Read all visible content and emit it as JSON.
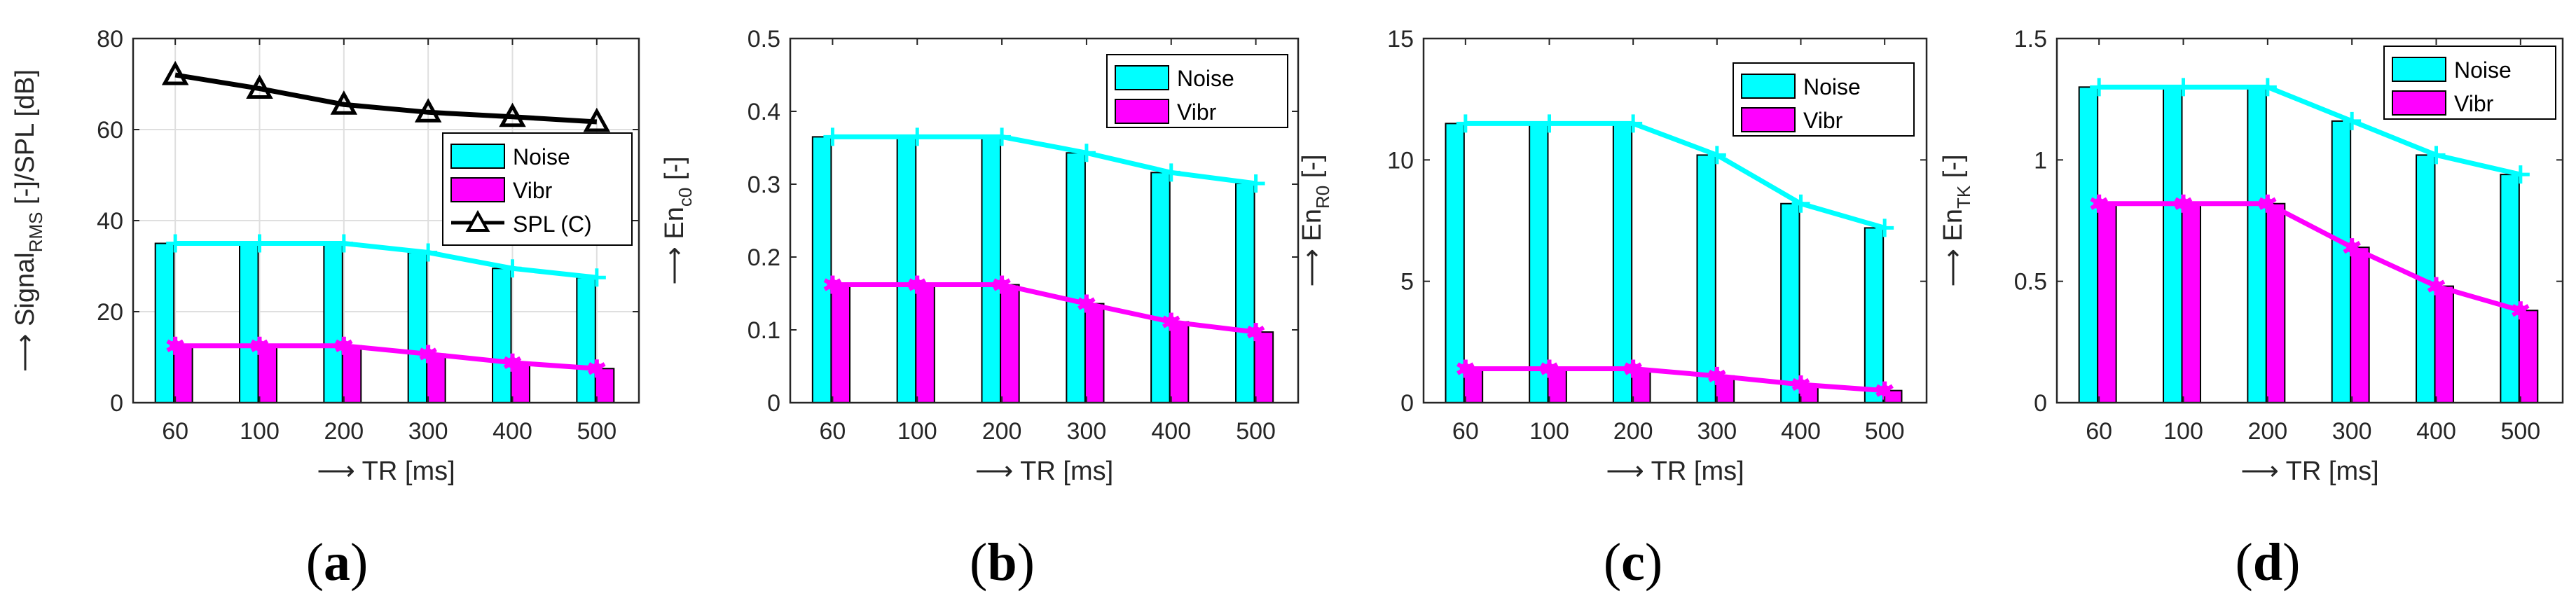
{
  "colors": {
    "noise": "#00FFFF",
    "vibr": "#FF00FF",
    "spl": "#000000",
    "grid": "#DFDFDF",
    "axis": "#262626"
  },
  "chart_data": [
    {
      "panel": "(a)",
      "panel_letter": "a",
      "type": "bar",
      "categories": [
        "60",
        "100",
        "200",
        "300",
        "400",
        "500"
      ],
      "xlabel": "⟶ TR [ms]",
      "ylabel_parts": [
        "⟶ Signal",
        "RMS",
        " [-]/SPL [dB]"
      ],
      "ylim": [
        0,
        80
      ],
      "yticks": [
        "0",
        "20",
        "40",
        "60",
        "80"
      ],
      "grid": true,
      "legend_position": "middle-right",
      "series": [
        {
          "name": "Noise",
          "kind": "bar+line",
          "marker": "+",
          "values": [
            35,
            35,
            35,
            33,
            29.5,
            27.5
          ]
        },
        {
          "name": "Vibr",
          "kind": "bar+line",
          "marker": "*",
          "values": [
            12.5,
            12.5,
            12.5,
            10.7,
            8.8,
            7.5
          ]
        },
        {
          "name": "SPL (C)",
          "kind": "line",
          "marker": "triangle",
          "values": [
            72,
            69,
            65.5,
            63.8,
            62.8,
            61.7
          ]
        }
      ]
    },
    {
      "panel": "(b)",
      "panel_letter": "b",
      "type": "bar",
      "categories": [
        "60",
        "100",
        "200",
        "300",
        "400",
        "500"
      ],
      "xlabel": "⟶ TR [ms]",
      "ylabel_parts": [
        "⟶ En",
        "c0",
        " [-]"
      ],
      "ylim": [
        0,
        0.5
      ],
      "yticks": [
        "0",
        "0.1",
        "0.2",
        "0.3",
        "0.4",
        "0.5"
      ],
      "grid": false,
      "legend_position": "top-right",
      "series": [
        {
          "name": "Noise",
          "kind": "bar+line",
          "marker": "+",
          "values": [
            0.365,
            0.365,
            0.365,
            0.343,
            0.316,
            0.301
          ]
        },
        {
          "name": "Vibr",
          "kind": "bar+line",
          "marker": "*",
          "values": [
            0.162,
            0.162,
            0.162,
            0.136,
            0.111,
            0.097
          ]
        }
      ]
    },
    {
      "panel": "(c)",
      "panel_letter": "c",
      "type": "bar",
      "categories": [
        "60",
        "100",
        "200",
        "300",
        "400",
        "500"
      ],
      "xlabel": "⟶ TR [ms]",
      "ylabel_parts": [
        "⟶ En",
        "R0",
        " [-]"
      ],
      "ylim": [
        0,
        15
      ],
      "yticks": [
        "0",
        "5",
        "10",
        "15"
      ],
      "grid": false,
      "legend_position": "top-right",
      "series": [
        {
          "name": "Noise",
          "kind": "bar+line",
          "marker": "+",
          "values": [
            11.5,
            11.5,
            11.5,
            10.2,
            8.2,
            7.2
          ]
        },
        {
          "name": "Vibr",
          "kind": "bar+line",
          "marker": "*",
          "values": [
            1.4,
            1.4,
            1.4,
            1.1,
            0.75,
            0.5
          ]
        }
      ]
    },
    {
      "panel": "(d)",
      "panel_letter": "d",
      "type": "bar",
      "categories": [
        "60",
        "100",
        "200",
        "300",
        "400",
        "500"
      ],
      "xlabel": "⟶ TR [ms]",
      "ylabel_parts": [
        "⟶ En",
        "TK",
        " [-]"
      ],
      "ylim": [
        0,
        1.5
      ],
      "yticks": [
        "0",
        "0.5",
        "1",
        "1.5"
      ],
      "grid": false,
      "legend_position": "top-right",
      "series": [
        {
          "name": "Noise",
          "kind": "bar+line",
          "marker": "+",
          "values": [
            1.3,
            1.3,
            1.3,
            1.16,
            1.02,
            0.94
          ]
        },
        {
          "name": "Vibr",
          "kind": "bar+line",
          "marker": "*",
          "values": [
            0.82,
            0.82,
            0.82,
            0.64,
            0.48,
            0.38
          ]
        }
      ]
    }
  ]
}
